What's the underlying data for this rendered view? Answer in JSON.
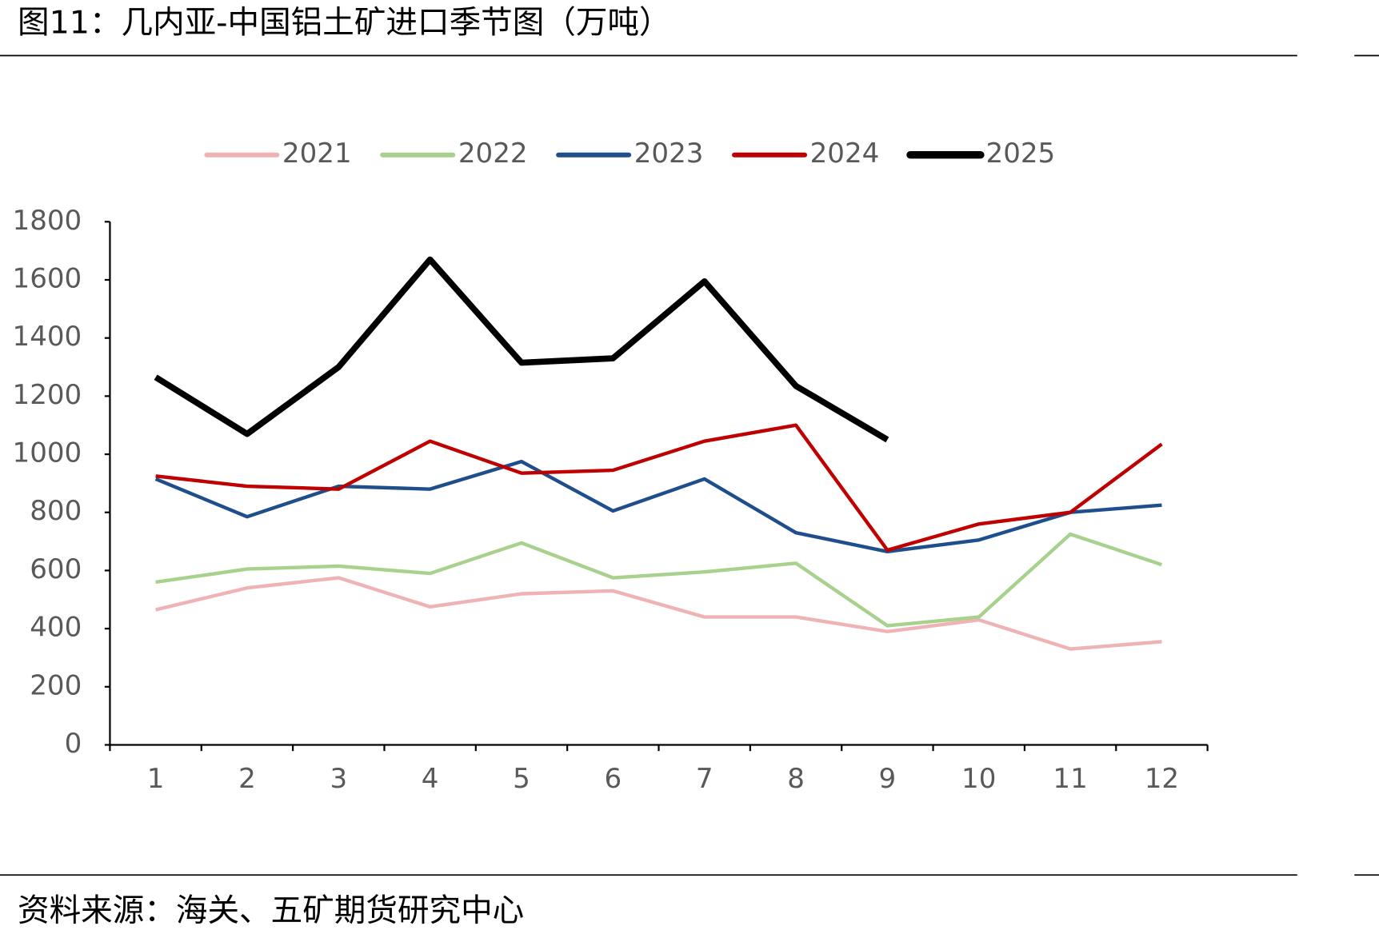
{
  "chart_data": {
    "type": "line",
    "title": "图11：几内亚-中国铝土矿进口季节图（万吨）",
    "source": "资料来源：海关、五矿期货研究中心",
    "categories": [
      "1",
      "2",
      "3",
      "4",
      "5",
      "6",
      "7",
      "8",
      "9",
      "10",
      "11",
      "12"
    ],
    "series": [
      {
        "name": "2021",
        "color": "#f0b3b5",
        "values": [
          465,
          540,
          575,
          475,
          520,
          530,
          440,
          440,
          390,
          430,
          330,
          355
        ]
      },
      {
        "name": "2022",
        "color": "#a9d18e",
        "values": [
          560,
          605,
          615,
          590,
          695,
          575,
          595,
          625,
          410,
          440,
          725,
          620
        ]
      },
      {
        "name": "2023",
        "color": "#1f4e8c",
        "values": [
          915,
          785,
          890,
          880,
          975,
          805,
          915,
          730,
          665,
          705,
          800,
          825
        ]
      },
      {
        "name": "2024",
        "color": "#c00000",
        "values": [
          925,
          890,
          880,
          1045,
          935,
          945,
          1045,
          1100,
          670,
          760,
          800,
          1035
        ]
      },
      {
        "name": "2025",
        "color": "#000000",
        "values": [
          1265,
          1070,
          1300,
          1670,
          1315,
          1330,
          1595,
          1235,
          1050,
          null,
          null,
          null
        ]
      }
    ],
    "ylim": [
      0,
      1800
    ],
    "yticks": [
      0,
      200,
      400,
      600,
      800,
      1000,
      1200,
      1400,
      1600,
      1800
    ],
    "legend": "top",
    "grid": false
  }
}
